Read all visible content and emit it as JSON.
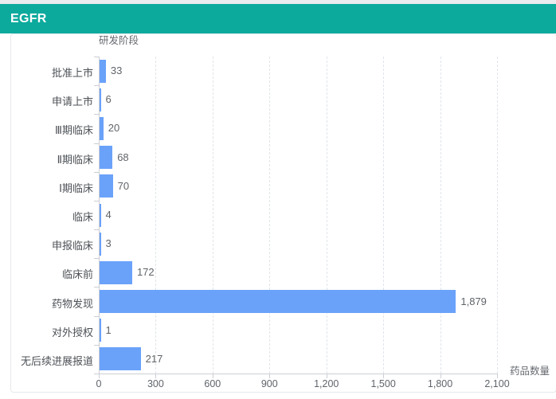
{
  "header": {
    "title": "EGFR",
    "background_color": "#0caa9d"
  },
  "chart_data": {
    "type": "bar",
    "orientation": "horizontal",
    "y_axis_name": "研发阶段",
    "x_axis_name": "药品数量",
    "categories": [
      "批准上市",
      "申请上市",
      "Ⅲ期临床",
      "Ⅱ期临床",
      "Ⅰ期临床",
      "临床",
      "申报临床",
      "临床前",
      "药物发现",
      "对外授权",
      "无后续进展报道"
    ],
    "values": [
      33,
      6,
      20,
      68,
      70,
      4,
      3,
      172,
      1879,
      1,
      217
    ],
    "value_labels": [
      "33",
      "6",
      "20",
      "68",
      "70",
      "4",
      "3",
      "172",
      "1,879",
      "1",
      "217"
    ],
    "x_ticks": [
      0,
      300,
      600,
      900,
      1200,
      1500,
      1800,
      2100
    ],
    "x_tick_labels": [
      "0",
      "300",
      "600",
      "900",
      "1,200",
      "1,500",
      "1,800",
      "2,100"
    ],
    "xlim": [
      0,
      2100
    ],
    "bar_color": "#6aa2fa",
    "grid": "vertical-dashed",
    "legend": "none"
  }
}
